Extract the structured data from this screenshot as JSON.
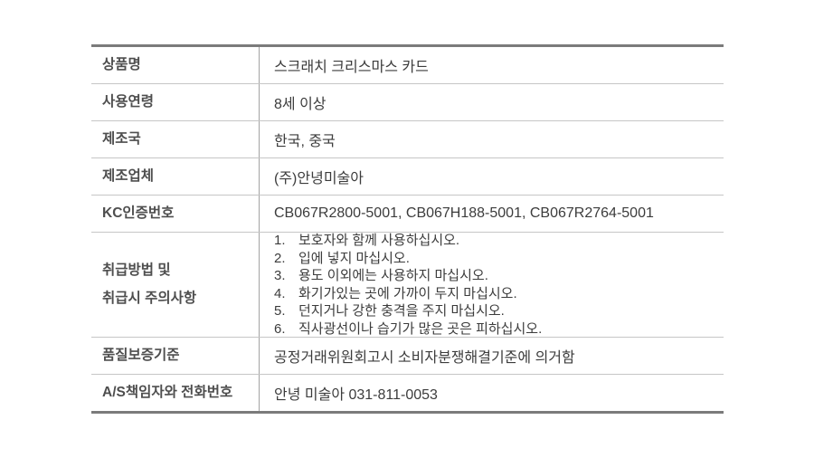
{
  "table": {
    "rows": [
      {
        "label": "상품명",
        "value": "스크래치 크리스마스 카드"
      },
      {
        "label": "사용연령",
        "value": "8세 이상"
      },
      {
        "label": "제조국",
        "value": "한국, 중국"
      },
      {
        "label": "제조업체",
        "value": "(주)안녕미술아"
      },
      {
        "label": "KC인증번호",
        "value": "CB067R2800-5001, CB067H188-5001, CB067R2764-5001"
      },
      {
        "label": "취급방법 및\n취급시 주의사항",
        "items": [
          {
            "num": "1.",
            "text": "보호자와 함께 사용하십시오."
          },
          {
            "num": "2.",
            "text": "입에 넣지 마십시오."
          },
          {
            "num": "3.",
            "text": "용도 이외에는 사용하지 마십시오."
          },
          {
            "num": "4.",
            "text": "화기가있는 곳에 가까이 두지 마십시오."
          },
          {
            "num": "5.",
            "text": "던지거나 강한 충격을 주지 마십시오."
          },
          {
            "num": "6.",
            "text": "직사광선이나 습기가 많은 곳은 피하십시오."
          }
        ]
      },
      {
        "label": "품질보증기준",
        "value": "공정거래위원회고시 소비자분쟁해결기준에 의거함"
      },
      {
        "label": "A/S책임자와 전화번호",
        "value": "안녕 미술아 031-811-0053"
      }
    ],
    "colors": {
      "border_heavy": "#7b7b7b",
      "row_divider": "#c6c6c6",
      "column_divider": "#a3a3a3",
      "label_text": "#4e4e4e",
      "value_text": "#3c3c3c",
      "background": "#ffffff"
    }
  }
}
